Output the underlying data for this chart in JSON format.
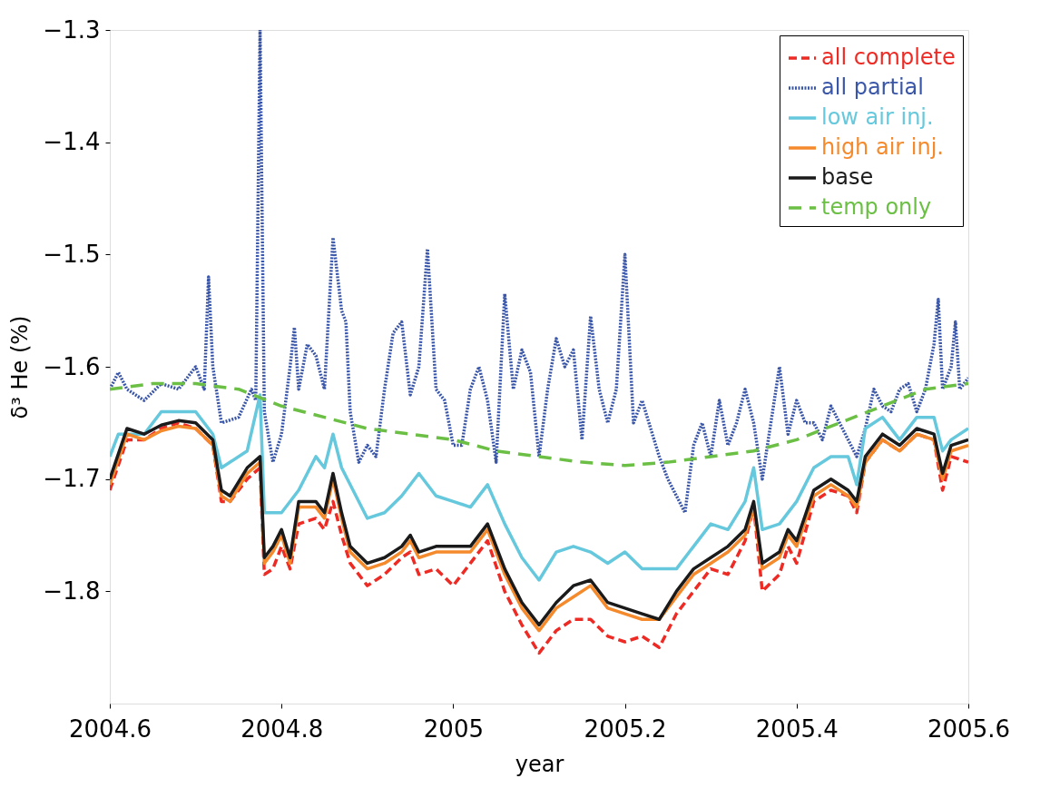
{
  "chart_data": {
    "type": "line",
    "xlabel": "year",
    "ylabel": "δ³ He (%)",
    "xlim": [
      2004.6,
      2005.6
    ],
    "xticks": [
      2004.6,
      2004.8,
      2005,
      2005.2,
      2005.4,
      2005.6
    ],
    "ylim": [
      -1.9,
      -1.3
    ],
    "yticks": [
      -1.8,
      -1.7,
      -1.6,
      -1.5,
      -1.4,
      -1.3
    ],
    "grid": false,
    "legend": "top right",
    "marker": "none",
    "series": [
      {
        "name": "all complete",
        "color": "#ee2a24",
        "line_style": "dashed",
        "x": [
          2004.6,
          2004.62,
          2004.64,
          2004.66,
          2004.68,
          2004.7,
          2004.72,
          2004.73,
          2004.74,
          2004.76,
          2004.775,
          2004.78,
          2004.79,
          2004.8,
          2004.81,
          2004.82,
          2004.84,
          2004.85,
          2004.86,
          2004.87,
          2004.88,
          2004.9,
          2004.92,
          2004.94,
          2004.95,
          2004.96,
          2004.98,
          2005.0,
          2005.02,
          2005.04,
          2005.06,
          2005.08,
          2005.1,
          2005.12,
          2005.14,
          2005.16,
          2005.18,
          2005.2,
          2005.22,
          2005.24,
          2005.26,
          2005.28,
          2005.3,
          2005.32,
          2005.34,
          2005.35,
          2005.36,
          2005.38,
          2005.39,
          2005.4,
          2005.42,
          2005.44,
          2005.46,
          2005.47,
          2005.48,
          2005.5,
          2005.52,
          2005.54,
          2005.56,
          2005.57,
          2005.58,
          2005.6
        ],
        "values": [
          -1.71,
          -1.665,
          -1.665,
          -1.655,
          -1.65,
          -1.655,
          -1.67,
          -1.72,
          -1.72,
          -1.7,
          -1.69,
          -1.785,
          -1.78,
          -1.76,
          -1.78,
          -1.74,
          -1.735,
          -1.745,
          -1.72,
          -1.75,
          -1.775,
          -1.795,
          -1.785,
          -1.77,
          -1.765,
          -1.785,
          -1.78,
          -1.795,
          -1.775,
          -1.755,
          -1.8,
          -1.83,
          -1.855,
          -1.835,
          -1.825,
          -1.825,
          -1.84,
          -1.845,
          -1.84,
          -1.85,
          -1.82,
          -1.8,
          -1.78,
          -1.785,
          -1.755,
          -1.725,
          -1.8,
          -1.785,
          -1.76,
          -1.775,
          -1.72,
          -1.71,
          -1.715,
          -1.73,
          -1.685,
          -1.665,
          -1.675,
          -1.66,
          -1.665,
          -1.71,
          -1.68,
          -1.685
        ]
      },
      {
        "name": "all partial",
        "color": "#3a56a8",
        "line_style": "dotted",
        "x": [
          2004.6,
          2004.61,
          2004.62,
          2004.64,
          2004.66,
          2004.68,
          2004.7,
          2004.71,
          2004.715,
          2004.72,
          2004.73,
          2004.75,
          2004.765,
          2004.77,
          2004.775,
          2004.78,
          2004.79,
          2004.8,
          2004.81,
          2004.815,
          2004.82,
          2004.83,
          2004.84,
          2004.85,
          2004.86,
          2004.87,
          2004.875,
          2004.88,
          2004.89,
          2004.9,
          2004.91,
          2004.92,
          2004.93,
          2004.94,
          2004.95,
          2004.96,
          2004.97,
          2004.98,
          2004.99,
          2005.0,
          2005.01,
          2005.02,
          2005.03,
          2005.04,
          2005.05,
          2005.06,
          2005.07,
          2005.08,
          2005.09,
          2005.1,
          2005.11,
          2005.12,
          2005.13,
          2005.14,
          2005.15,
          2005.16,
          2005.17,
          2005.18,
          2005.19,
          2005.2,
          2005.21,
          2005.22,
          2005.23,
          2005.24,
          2005.25,
          2005.26,
          2005.27,
          2005.28,
          2005.29,
          2005.3,
          2005.31,
          2005.32,
          2005.33,
          2005.34,
          2005.35,
          2005.36,
          2005.37,
          2005.38,
          2005.39,
          2005.4,
          2005.41,
          2005.42,
          2005.43,
          2005.44,
          2005.45,
          2005.46,
          2005.47,
          2005.48,
          2005.49,
          2005.5,
          2005.51,
          2005.52,
          2005.53,
          2005.54,
          2005.55,
          2005.56,
          2005.565,
          2005.57,
          2005.58,
          2005.585,
          2005.59,
          2005.6
        ],
        "values": [
          -1.62,
          -1.605,
          -1.62,
          -1.63,
          -1.615,
          -1.62,
          -1.6,
          -1.62,
          -1.52,
          -1.6,
          -1.65,
          -1.645,
          -1.62,
          -1.63,
          -1.3,
          -1.64,
          -1.685,
          -1.66,
          -1.6,
          -1.565,
          -1.62,
          -1.58,
          -1.59,
          -1.62,
          -1.485,
          -1.55,
          -1.56,
          -1.64,
          -1.685,
          -1.67,
          -1.68,
          -1.62,
          -1.57,
          -1.56,
          -1.625,
          -1.6,
          -1.495,
          -1.62,
          -1.63,
          -1.67,
          -1.67,
          -1.62,
          -1.6,
          -1.63,
          -1.685,
          -1.535,
          -1.62,
          -1.585,
          -1.605,
          -1.68,
          -1.62,
          -1.575,
          -1.6,
          -1.585,
          -1.665,
          -1.555,
          -1.62,
          -1.65,
          -1.62,
          -1.5,
          -1.65,
          -1.63,
          -1.655,
          -1.68,
          -1.7,
          -1.715,
          -1.73,
          -1.67,
          -1.65,
          -1.68,
          -1.63,
          -1.67,
          -1.65,
          -1.62,
          -1.65,
          -1.7,
          -1.65,
          -1.6,
          -1.66,
          -1.63,
          -1.65,
          -1.65,
          -1.665,
          -1.635,
          -1.65,
          -1.665,
          -1.68,
          -1.655,
          -1.62,
          -1.635,
          -1.64,
          -1.62,
          -1.615,
          -1.64,
          -1.62,
          -1.58,
          -1.54,
          -1.62,
          -1.6,
          -1.56,
          -1.62,
          -1.61
        ]
      },
      {
        "name": "low air inj.",
        "color": "#66c8dc",
        "line_style": "solid",
        "x": [
          2004.6,
          2004.61,
          2004.64,
          2004.66,
          2004.68,
          2004.7,
          2004.72,
          2004.73,
          2004.76,
          2004.775,
          2004.78,
          2004.8,
          2004.82,
          2004.84,
          2004.85,
          2004.86,
          2004.87,
          2004.9,
          2004.92,
          2004.94,
          2004.96,
          2004.98,
          2005.0,
          2005.02,
          2005.04,
          2005.06,
          2005.08,
          2005.1,
          2005.12,
          2005.14,
          2005.16,
          2005.18,
          2005.2,
          2005.22,
          2005.24,
          2005.26,
          2005.28,
          2005.3,
          2005.32,
          2005.34,
          2005.35,
          2005.36,
          2005.38,
          2005.4,
          2005.42,
          2005.44,
          2005.46,
          2005.47,
          2005.48,
          2005.5,
          2005.52,
          2005.54,
          2005.56,
          2005.57,
          2005.58,
          2005.6
        ],
        "values": [
          -1.68,
          -1.66,
          -1.66,
          -1.64,
          -1.64,
          -1.64,
          -1.66,
          -1.69,
          -1.675,
          -1.625,
          -1.73,
          -1.73,
          -1.71,
          -1.68,
          -1.69,
          -1.66,
          -1.69,
          -1.735,
          -1.73,
          -1.715,
          -1.695,
          -1.715,
          -1.72,
          -1.725,
          -1.705,
          -1.74,
          -1.77,
          -1.79,
          -1.765,
          -1.76,
          -1.765,
          -1.775,
          -1.765,
          -1.78,
          -1.78,
          -1.78,
          -1.76,
          -1.74,
          -1.745,
          -1.72,
          -1.69,
          -1.745,
          -1.74,
          -1.72,
          -1.69,
          -1.68,
          -1.68,
          -1.705,
          -1.655,
          -1.645,
          -1.665,
          -1.645,
          -1.645,
          -1.675,
          -1.665,
          -1.655
        ]
      },
      {
        "name": "high air inj.",
        "color": "#f58a2c",
        "line_style": "solid",
        "x": [
          2004.6,
          2004.62,
          2004.64,
          2004.66,
          2004.68,
          2004.7,
          2004.72,
          2004.73,
          2004.74,
          2004.76,
          2004.775,
          2004.78,
          2004.79,
          2004.8,
          2004.81,
          2004.82,
          2004.84,
          2004.85,
          2004.86,
          2004.87,
          2004.88,
          2004.9,
          2004.92,
          2004.94,
          2004.95,
          2004.96,
          2004.98,
          2005.0,
          2005.02,
          2005.04,
          2005.06,
          2005.08,
          2005.1,
          2005.12,
          2005.14,
          2005.16,
          2005.18,
          2005.2,
          2005.22,
          2005.24,
          2005.26,
          2005.28,
          2005.3,
          2005.32,
          2005.34,
          2005.35,
          2005.36,
          2005.38,
          2005.39,
          2005.4,
          2005.42,
          2005.44,
          2005.46,
          2005.47,
          2005.48,
          2005.5,
          2005.52,
          2005.54,
          2005.56,
          2005.57,
          2005.58,
          2005.6
        ],
        "values": [
          -1.705,
          -1.66,
          -1.665,
          -1.657,
          -1.653,
          -1.655,
          -1.67,
          -1.715,
          -1.72,
          -1.695,
          -1.685,
          -1.775,
          -1.765,
          -1.75,
          -1.775,
          -1.725,
          -1.725,
          -1.735,
          -1.7,
          -1.735,
          -1.765,
          -1.78,
          -1.775,
          -1.765,
          -1.755,
          -1.77,
          -1.765,
          -1.765,
          -1.765,
          -1.745,
          -1.785,
          -1.815,
          -1.835,
          -1.815,
          -1.805,
          -1.795,
          -1.815,
          -1.82,
          -1.825,
          -1.825,
          -1.805,
          -1.785,
          -1.775,
          -1.765,
          -1.75,
          -1.725,
          -1.78,
          -1.77,
          -1.75,
          -1.76,
          -1.715,
          -1.705,
          -1.715,
          -1.725,
          -1.685,
          -1.665,
          -1.675,
          -1.66,
          -1.665,
          -1.7,
          -1.675,
          -1.67
        ]
      },
      {
        "name": "base",
        "color": "#1a1a1a",
        "line_style": "solid",
        "x": [
          2004.6,
          2004.62,
          2004.64,
          2004.66,
          2004.68,
          2004.7,
          2004.72,
          2004.73,
          2004.74,
          2004.76,
          2004.775,
          2004.78,
          2004.79,
          2004.8,
          2004.81,
          2004.82,
          2004.84,
          2004.85,
          2004.86,
          2004.87,
          2004.88,
          2004.9,
          2004.92,
          2004.94,
          2004.95,
          2004.96,
          2004.98,
          2005.0,
          2005.02,
          2005.04,
          2005.06,
          2005.08,
          2005.1,
          2005.12,
          2005.14,
          2005.16,
          2005.18,
          2005.2,
          2005.22,
          2005.24,
          2005.26,
          2005.28,
          2005.3,
          2005.32,
          2005.34,
          2005.35,
          2005.36,
          2005.38,
          2005.39,
          2005.4,
          2005.42,
          2005.44,
          2005.46,
          2005.47,
          2005.48,
          2005.5,
          2005.52,
          2005.54,
          2005.56,
          2005.57,
          2005.58,
          2005.6
        ],
        "values": [
          -1.7,
          -1.655,
          -1.66,
          -1.652,
          -1.648,
          -1.65,
          -1.665,
          -1.71,
          -1.715,
          -1.69,
          -1.68,
          -1.77,
          -1.76,
          -1.745,
          -1.77,
          -1.72,
          -1.72,
          -1.73,
          -1.695,
          -1.73,
          -1.76,
          -1.775,
          -1.77,
          -1.76,
          -1.75,
          -1.765,
          -1.76,
          -1.76,
          -1.76,
          -1.74,
          -1.78,
          -1.81,
          -1.83,
          -1.81,
          -1.795,
          -1.79,
          -1.81,
          -1.815,
          -1.82,
          -1.825,
          -1.8,
          -1.78,
          -1.77,
          -1.76,
          -1.745,
          -1.72,
          -1.775,
          -1.765,
          -1.745,
          -1.755,
          -1.71,
          -1.7,
          -1.71,
          -1.72,
          -1.68,
          -1.66,
          -1.67,
          -1.655,
          -1.66,
          -1.695,
          -1.67,
          -1.665
        ]
      },
      {
        "name": "temp only",
        "color": "#6cbf45",
        "line_style": "longdash",
        "x": [
          2004.6,
          2004.65,
          2004.7,
          2004.75,
          2004.8,
          2004.85,
          2004.9,
          2004.95,
          2005.0,
          2005.05,
          2005.1,
          2005.15,
          2005.2,
          2005.25,
          2005.3,
          2005.35,
          2005.4,
          2005.45,
          2005.5,
          2005.55,
          2005.6
        ],
        "values": [
          -1.62,
          -1.615,
          -1.615,
          -1.62,
          -1.635,
          -1.645,
          -1.655,
          -1.66,
          -1.665,
          -1.675,
          -1.68,
          -1.685,
          -1.688,
          -1.685,
          -1.68,
          -1.675,
          -1.665,
          -1.65,
          -1.635,
          -1.62,
          -1.615
        ]
      }
    ]
  }
}
